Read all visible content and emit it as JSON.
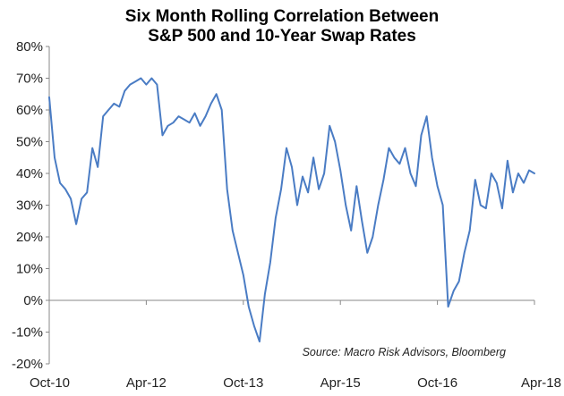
{
  "chart_data": {
    "type": "line",
    "title_lines": [
      "Six Month Rolling Correlation Between",
      "S&P 500 and 10-Year Swap Rates"
    ],
    "source_note": "Source: Macro Risk Advisors, Bloomberg",
    "xlabel": "",
    "ylabel": "",
    "ylim": [
      -0.2,
      0.8
    ],
    "y_ticks": [
      -0.2,
      -0.1,
      0.0,
      0.1,
      0.2,
      0.3,
      0.4,
      0.5,
      0.6,
      0.7,
      0.8
    ],
    "y_tick_labels": [
      "-20%",
      "-10%",
      "0%",
      "10%",
      "20%",
      "30%",
      "40%",
      "50%",
      "60%",
      "70%",
      "80%"
    ],
    "xlim": [
      "2010-10",
      "2018-04"
    ],
    "x_ticks": [
      "2010-10",
      "2012-04",
      "2013-10",
      "2015-04",
      "2016-10",
      "2018-04"
    ],
    "x_tick_labels": [
      "Oct-10",
      "Apr-12",
      "Oct-13",
      "Apr-15",
      "Oct-16",
      "Apr-18"
    ],
    "grid": false,
    "legend": "none",
    "colors": {
      "series": "#4a7cc4",
      "axis": "#888888"
    },
    "series": [
      {
        "points": [
          [
            "2010-10",
            0.64
          ],
          [
            "2010-11",
            0.45
          ],
          [
            "2010-12",
            0.37
          ],
          [
            "2011-01",
            0.35
          ],
          [
            "2011-02",
            0.32
          ],
          [
            "2011-03",
            0.24
          ],
          [
            "2011-04",
            0.32
          ],
          [
            "2011-05",
            0.34
          ],
          [
            "2011-06",
            0.48
          ],
          [
            "2011-07",
            0.42
          ],
          [
            "2011-08",
            0.58
          ],
          [
            "2011-09",
            0.6
          ],
          [
            "2011-10",
            0.62
          ],
          [
            "2011-11",
            0.61
          ],
          [
            "2011-12",
            0.66
          ],
          [
            "2012-01",
            0.68
          ],
          [
            "2012-02",
            0.69
          ],
          [
            "2012-03",
            0.7
          ],
          [
            "2012-04",
            0.68
          ],
          [
            "2012-05",
            0.7
          ],
          [
            "2012-06",
            0.68
          ],
          [
            "2012-07",
            0.52
          ],
          [
            "2012-08",
            0.55
          ],
          [
            "2012-09",
            0.56
          ],
          [
            "2012-10",
            0.58
          ],
          [
            "2012-11",
            0.57
          ],
          [
            "2012-12",
            0.56
          ],
          [
            "2013-01",
            0.59
          ],
          [
            "2013-02",
            0.55
          ],
          [
            "2013-03",
            0.58
          ],
          [
            "2013-04",
            0.62
          ],
          [
            "2013-05",
            0.65
          ],
          [
            "2013-06",
            0.6
          ],
          [
            "2013-07",
            0.35
          ],
          [
            "2013-08",
            0.22
          ],
          [
            "2013-09",
            0.15
          ],
          [
            "2013-10",
            0.08
          ],
          [
            "2013-11",
            -0.02
          ],
          [
            "2013-12",
            -0.08
          ],
          [
            "2014-01",
            -0.13
          ],
          [
            "2014-02",
            0.02
          ],
          [
            "2014-03",
            0.12
          ],
          [
            "2014-04",
            0.26
          ],
          [
            "2014-05",
            0.35
          ],
          [
            "2014-06",
            0.48
          ],
          [
            "2014-07",
            0.42
          ],
          [
            "2014-08",
            0.3
          ],
          [
            "2014-09",
            0.39
          ],
          [
            "2014-10",
            0.34
          ],
          [
            "2014-11",
            0.45
          ],
          [
            "2014-12",
            0.35
          ],
          [
            "2015-01",
            0.4
          ],
          [
            "2015-02",
            0.55
          ],
          [
            "2015-03",
            0.5
          ],
          [
            "2015-04",
            0.41
          ],
          [
            "2015-05",
            0.3
          ],
          [
            "2015-06",
            0.22
          ],
          [
            "2015-07",
            0.36
          ],
          [
            "2015-08",
            0.25
          ],
          [
            "2015-09",
            0.15
          ],
          [
            "2015-10",
            0.2
          ],
          [
            "2015-11",
            0.3
          ],
          [
            "2015-12",
            0.38
          ],
          [
            "2016-01",
            0.48
          ],
          [
            "2016-02",
            0.45
          ],
          [
            "2016-03",
            0.43
          ],
          [
            "2016-04",
            0.48
          ],
          [
            "2016-05",
            0.4
          ],
          [
            "2016-06",
            0.36
          ],
          [
            "2016-07",
            0.52
          ],
          [
            "2016-08",
            0.58
          ],
          [
            "2016-09",
            0.45
          ],
          [
            "2016-10",
            0.36
          ],
          [
            "2016-11",
            0.3
          ],
          [
            "2016-12",
            -0.02
          ],
          [
            "2017-01",
            0.03
          ],
          [
            "2017-02",
            0.06
          ],
          [
            "2017-03",
            0.15
          ],
          [
            "2017-04",
            0.22
          ],
          [
            "2017-05",
            0.38
          ],
          [
            "2017-06",
            0.3
          ],
          [
            "2017-07",
            0.29
          ],
          [
            "2017-08",
            0.4
          ],
          [
            "2017-09",
            0.37
          ],
          [
            "2017-10",
            0.29
          ],
          [
            "2017-11",
            0.44
          ],
          [
            "2017-12",
            0.34
          ],
          [
            "2018-01",
            0.4
          ],
          [
            "2018-02",
            0.37
          ],
          [
            "2018-03",
            0.41
          ],
          [
            "2018-04",
            0.4
          ]
        ]
      }
    ]
  }
}
